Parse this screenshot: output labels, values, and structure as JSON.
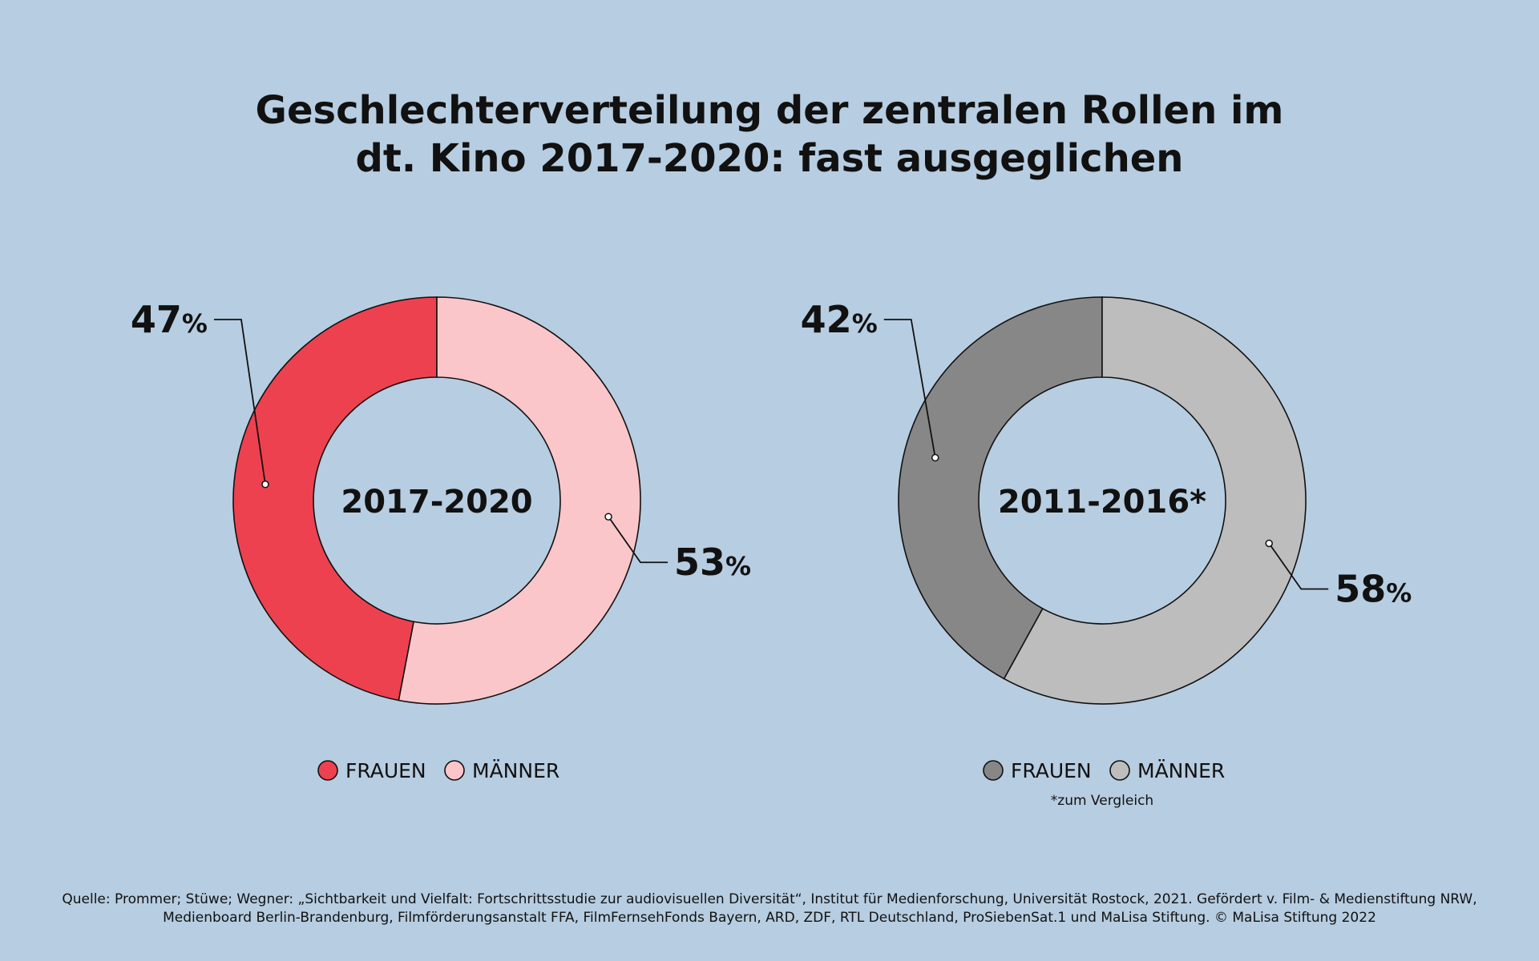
{
  "title": {
    "line1": "Geschlechterverteilung der zentralen Rollen im",
    "line2": "dt. Kino 2017-2020: fast ausgeglichen"
  },
  "chart_data": [
    {
      "type": "pie",
      "donut": true,
      "center_label": "2017-2020",
      "categories": [
        "FRAUEN",
        "MÄNNER"
      ],
      "values": [
        47,
        53
      ],
      "value_labels": [
        "47",
        "53"
      ],
      "unit": "%",
      "colors": [
        "#ee4150",
        "#fbc6c9"
      ],
      "legend_placement": "bottom"
    },
    {
      "type": "pie",
      "donut": true,
      "center_label": "2011-2016*",
      "categories": [
        "FRAUEN",
        "MÄNNER"
      ],
      "values": [
        42,
        58
      ],
      "value_labels": [
        "42",
        "58"
      ],
      "unit": "%",
      "colors": [
        "#878787",
        "#bdbdbd"
      ],
      "legend_placement": "bottom",
      "note": "*zum Vergleich"
    }
  ],
  "footer": {
    "line1": "Quelle: Prommer; Stüwe; Wegner: „Sichtbarkeit und Vielfalt: Fortschrittsstudie zur audiovisuellen Diversität“, Institut für Medienforschung, Universität Rostock, 2021. Gefördert v. Film- & Medienstiftung NRW,",
    "line2": "Medienboard Berlin-Brandenburg, Filmförderungsanstalt FFA, FilmFernsehFonds Bayern, ARD, ZDF, RTL Deutschland, ProSiebenSat.1 und MaLisa Stiftung. © MaLisa Stiftung 2022"
  }
}
